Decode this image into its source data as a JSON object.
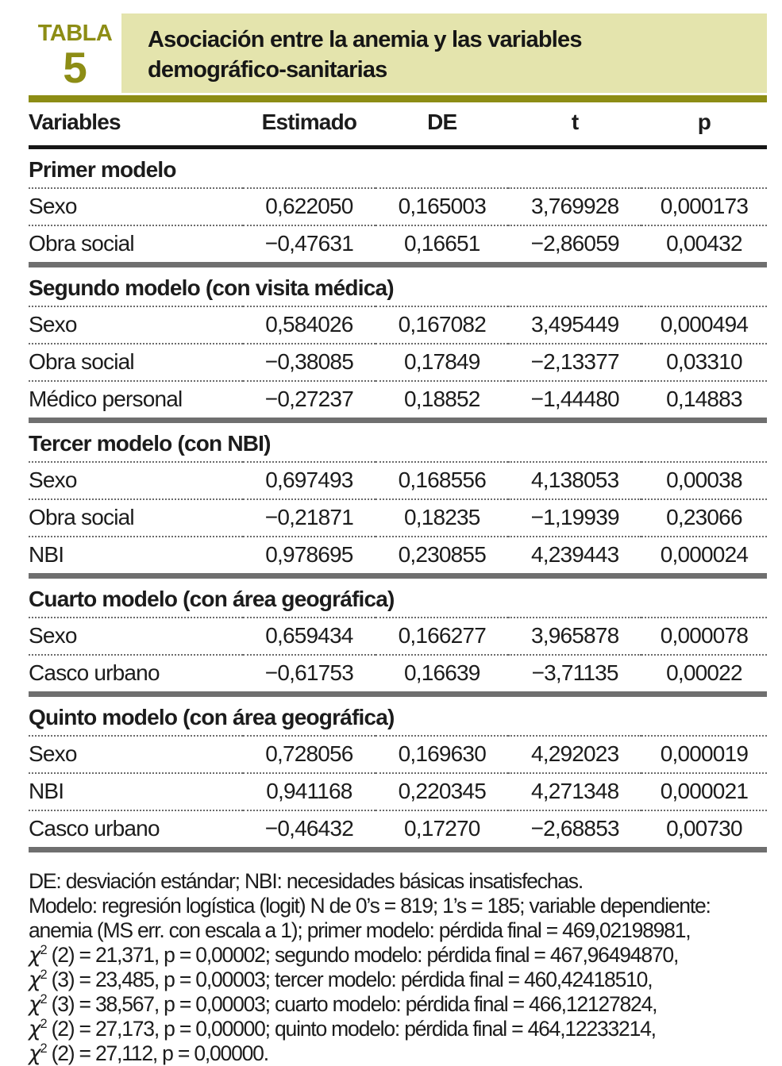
{
  "header": {
    "label": "TABLA",
    "number": "5",
    "title_line1": "Asociación entre la anemia y las variables",
    "title_line2": "demográfico-sanitarias"
  },
  "colors": {
    "olive_accent": "#8d8d15",
    "title_background": "#e4e4ad",
    "section_bar": "#6f6f6f"
  },
  "table": {
    "columns": [
      "Variables",
      "Estimado",
      "DE",
      "t",
      "p"
    ],
    "sections": [
      {
        "title": "Primer modelo",
        "rows": [
          {
            "variable": "Sexo",
            "estimado": "0,622050",
            "de": "0,165003",
            "t": "3,769928",
            "p": "0,000173"
          },
          {
            "variable": "Obra social",
            "estimado": "−0,47631",
            "de": "0,16651",
            "t": "−2,86059",
            "p": "0,00432"
          }
        ]
      },
      {
        "title": "Segundo modelo (con visita médica)",
        "rows": [
          {
            "variable": "Sexo",
            "estimado": "0,584026",
            "de": "0,167082",
            "t": "3,495449",
            "p": "0,000494"
          },
          {
            "variable": "Obra social",
            "estimado": "−0,38085",
            "de": "0,17849",
            "t": "−2,13377",
            "p": "0,03310"
          },
          {
            "variable": "Médico personal",
            "estimado": "−0,27237",
            "de": "0,18852",
            "t": "−1,44480",
            "p": "0,14883"
          }
        ]
      },
      {
        "title": "Tercer modelo (con NBI)",
        "rows": [
          {
            "variable": "Sexo",
            "estimado": "0,697493",
            "de": "0,168556",
            "t": "4,138053",
            "p": "0,00038"
          },
          {
            "variable": "Obra social",
            "estimado": "−0,21871",
            "de": "0,18235",
            "t": "−1,19939",
            "p": "0,23066"
          },
          {
            "variable": "NBI",
            "estimado": "0,978695",
            "de": "0,230855",
            "t": "4,239443",
            "p": "0,000024"
          }
        ]
      },
      {
        "title": "Cuarto modelo (con área geográfica)",
        "rows": [
          {
            "variable": "Sexo",
            "estimado": "0,659434",
            "de": "0,166277",
            "t": "3,965878",
            "p": "0,000078"
          },
          {
            "variable": "Casco urbano",
            "estimado": "−0,61753",
            "de": "0,16639",
            "t": "−3,71135",
            "p": "0,00022"
          }
        ]
      },
      {
        "title": "Quinto modelo (con área geográfica)",
        "rows": [
          {
            "variable": "Sexo",
            "estimado": "0,728056",
            "de": "0,169630",
            "t": "4,292023",
            "p": "0,000019"
          },
          {
            "variable": "NBI",
            "estimado": "0,941168",
            "de": "0,220345",
            "t": "4,271348",
            "p": "0,000021"
          },
          {
            "variable": "Casco urbano",
            "estimado": "−0,46432",
            "de": "0,17270",
            "t": "−2,68853",
            "p": "0,00730"
          }
        ]
      }
    ]
  },
  "footnotes": [
    {
      "text": "DE: desviación estándar; NBI: necesidades básicas insatisfechas."
    },
    {
      "text": "Modelo: regresión logística (logit) N de 0’s = 819; 1’s = 185; variable dependiente:"
    },
    {
      "text": "anemia (MS err. con escala a 1); primer modelo: pérdida final = 469,02198981,"
    },
    {
      "base": "χ",
      "sup": "2",
      "text": " (2) = 21,371, p = 0,00002; segundo modelo: pérdida final = 467,96494870,"
    },
    {
      "base": "χ",
      "sup": "2",
      "text": " (3) = 23,485, p = 0,00003; tercer modelo: pérdida final = 460,42418510,"
    },
    {
      "base": "χ",
      "sup": "2",
      "text": " (3) = 38,567, p = 0,00003; cuarto modelo: pérdida final = 466,12127824,"
    },
    {
      "base": "χ",
      "sup": "2",
      "text": " (2) = 27,173, p = 0,00000; quinto modelo: pérdida final = 464,12233214,"
    },
    {
      "base": "χ",
      "sup": "2",
      "text": " (2) = 27,112, p = 0,00000."
    }
  ]
}
